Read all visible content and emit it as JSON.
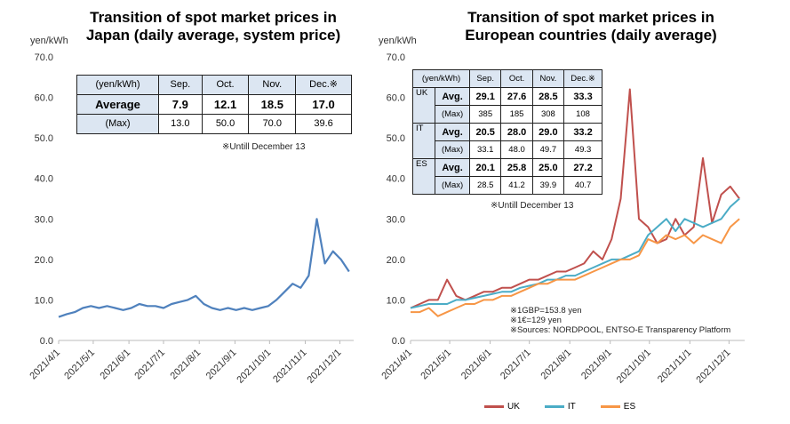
{
  "chart_data": [
    {
      "type": "line",
      "title": "Transition of spot market prices in Japan (daily average, system price)",
      "ylabel": "yen/kWh",
      "ylim": [
        0,
        70
      ],
      "yticks": [
        "0.0",
        "10.0",
        "20.0",
        "30.0",
        "40.0",
        "50.0",
        "60.0",
        "70.0"
      ],
      "xticks": [
        "2021/4/1",
        "2021/5/1",
        "2021/6/1",
        "2021/7/1",
        "2021/8/1",
        "2021/9/1",
        "2021/10/1",
        "2021/11/1",
        "2021/12/1"
      ],
      "xrange": [
        "2021-04-01",
        "2021-12-13"
      ],
      "x": [
        "2021-04-01",
        "2021-04-08",
        "2021-04-15",
        "2021-04-22",
        "2021-04-29",
        "2021-05-06",
        "2021-05-13",
        "2021-05-20",
        "2021-05-27",
        "2021-06-03",
        "2021-06-10",
        "2021-06-17",
        "2021-06-24",
        "2021-07-01",
        "2021-07-08",
        "2021-07-15",
        "2021-07-22",
        "2021-07-29",
        "2021-08-05",
        "2021-08-12",
        "2021-08-19",
        "2021-08-26",
        "2021-09-02",
        "2021-09-09",
        "2021-09-16",
        "2021-09-23",
        "2021-09-30",
        "2021-10-07",
        "2021-10-14",
        "2021-10-21",
        "2021-10-28",
        "2021-11-04",
        "2021-11-11",
        "2021-11-18",
        "2021-11-25",
        "2021-12-02",
        "2021-12-09"
      ],
      "series": [
        {
          "color": "#4f81bd",
          "values": [
            5.8,
            6.5,
            7,
            8,
            8.5,
            8,
            8.5,
            8,
            7.5,
            8,
            9,
            8.5,
            8.5,
            8,
            9,
            9.5,
            10,
            11,
            9,
            8,
            7.5,
            8,
            7.5,
            8,
            7.5,
            8,
            8.5,
            10,
            12,
            14,
            13,
            16,
            30,
            19,
            22,
            20,
            17
          ]
        }
      ],
      "grid": false,
      "table": {
        "header": [
          "(yen/kWh)",
          "Sep.",
          "Oct.",
          "Nov.",
          "Dec.※"
        ],
        "rows": [
          [
            "Average",
            "7.9",
            "12.1",
            "18.5",
            "17.0"
          ],
          [
            "(Max)",
            "13.0",
            "50.0",
            "70.0",
            "39.6"
          ]
        ],
        "note": "※Untill December 13"
      }
    },
    {
      "type": "line",
      "title": "Transition of spot market prices in European countries (daily average)",
      "ylabel": "yen/kWh",
      "ylim": [
        0,
        70
      ],
      "yticks": [
        "0.0",
        "10.0",
        "20.0",
        "30.0",
        "40.0",
        "50.0",
        "60.0",
        "70.0"
      ],
      "xticks": [
        "2021/4/1",
        "2021/5/1",
        "2021/6/1",
        "2021/7/1",
        "2021/8/1",
        "2021/9/1",
        "2021/10/1",
        "2021/11/1",
        "2021/12/1"
      ],
      "xrange": [
        "2021-04-01",
        "2021-12-13"
      ],
      "x": [
        "2021-04-01",
        "2021-04-08",
        "2021-04-15",
        "2021-04-22",
        "2021-04-29",
        "2021-05-06",
        "2021-05-13",
        "2021-05-20",
        "2021-05-27",
        "2021-06-03",
        "2021-06-10",
        "2021-06-17",
        "2021-06-24",
        "2021-07-01",
        "2021-07-08",
        "2021-07-15",
        "2021-07-22",
        "2021-07-29",
        "2021-08-05",
        "2021-08-12",
        "2021-08-19",
        "2021-08-26",
        "2021-09-02",
        "2021-09-09",
        "2021-09-16",
        "2021-09-23",
        "2021-09-30",
        "2021-10-07",
        "2021-10-14",
        "2021-10-21",
        "2021-10-28",
        "2021-11-04",
        "2021-11-11",
        "2021-11-18",
        "2021-11-25",
        "2021-12-02",
        "2021-12-09"
      ],
      "series": [
        {
          "name": "UK",
          "color": "#c0504d",
          "values": [
            8,
            9,
            10,
            10,
            15,
            11,
            10,
            11,
            12,
            12,
            13,
            13,
            14,
            15,
            15,
            16,
            17,
            17,
            18,
            19,
            22,
            20,
            25,
            35,
            62,
            30,
            28,
            24,
            25,
            30,
            26,
            28,
            45,
            29,
            36,
            38,
            35
          ]
        },
        {
          "name": "IT",
          "color": "#4bacc6",
          "values": [
            8,
            8.5,
            9,
            9,
            9,
            10,
            10,
            10.5,
            11,
            11.5,
            12,
            12,
            13,
            13.5,
            14,
            15,
            15,
            16,
            16,
            17,
            18,
            19,
            20,
            20,
            21,
            22,
            26,
            28,
            30,
            27,
            30,
            29,
            28,
            29,
            30,
            33,
            35
          ]
        },
        {
          "name": "ES",
          "color": "#f79646",
          "values": [
            7,
            7,
            8,
            6,
            7,
            8,
            9,
            9,
            10,
            10,
            11,
            11,
            12,
            13,
            14,
            14,
            15,
            15,
            15,
            16,
            17,
            18,
            19,
            20,
            20,
            21,
            25,
            24,
            26,
            25,
            26,
            24,
            26,
            25,
            24,
            28,
            30
          ]
        }
      ],
      "legend": "bottom",
      "grid": false,
      "table": {
        "header": [
          "(yen/kWh)",
          "Sep.",
          "Oct.",
          "Nov.",
          "Dec.※"
        ],
        "groups": [
          {
            "country": "UK",
            "rows": [
              [
                "Avg.",
                "29.1",
                "27.6",
                "28.5",
                "33.3"
              ],
              [
                "(Max)",
                "385",
                "185",
                "308",
                "108"
              ]
            ]
          },
          {
            "country": "IT",
            "rows": [
              [
                "Avg.",
                "20.5",
                "28.0",
                "29.0",
                "33.2"
              ],
              [
                "(Max)",
                "33.1",
                "48.0",
                "49.7",
                "49.3"
              ]
            ]
          },
          {
            "country": "ES",
            "rows": [
              [
                "Avg.",
                "20.1",
                "25.8",
                "25.0",
                "27.2"
              ],
              [
                "(Max)",
                "28.5",
                "41.2",
                "39.9",
                "40.7"
              ]
            ]
          }
        ],
        "note": "※Untill December 13"
      },
      "notes": [
        "※1GBP=153.8 yen",
        "※1€=129 yen",
        "※Sources: NORDPOOL, ENTSO-E Transparency Platform"
      ]
    }
  ]
}
